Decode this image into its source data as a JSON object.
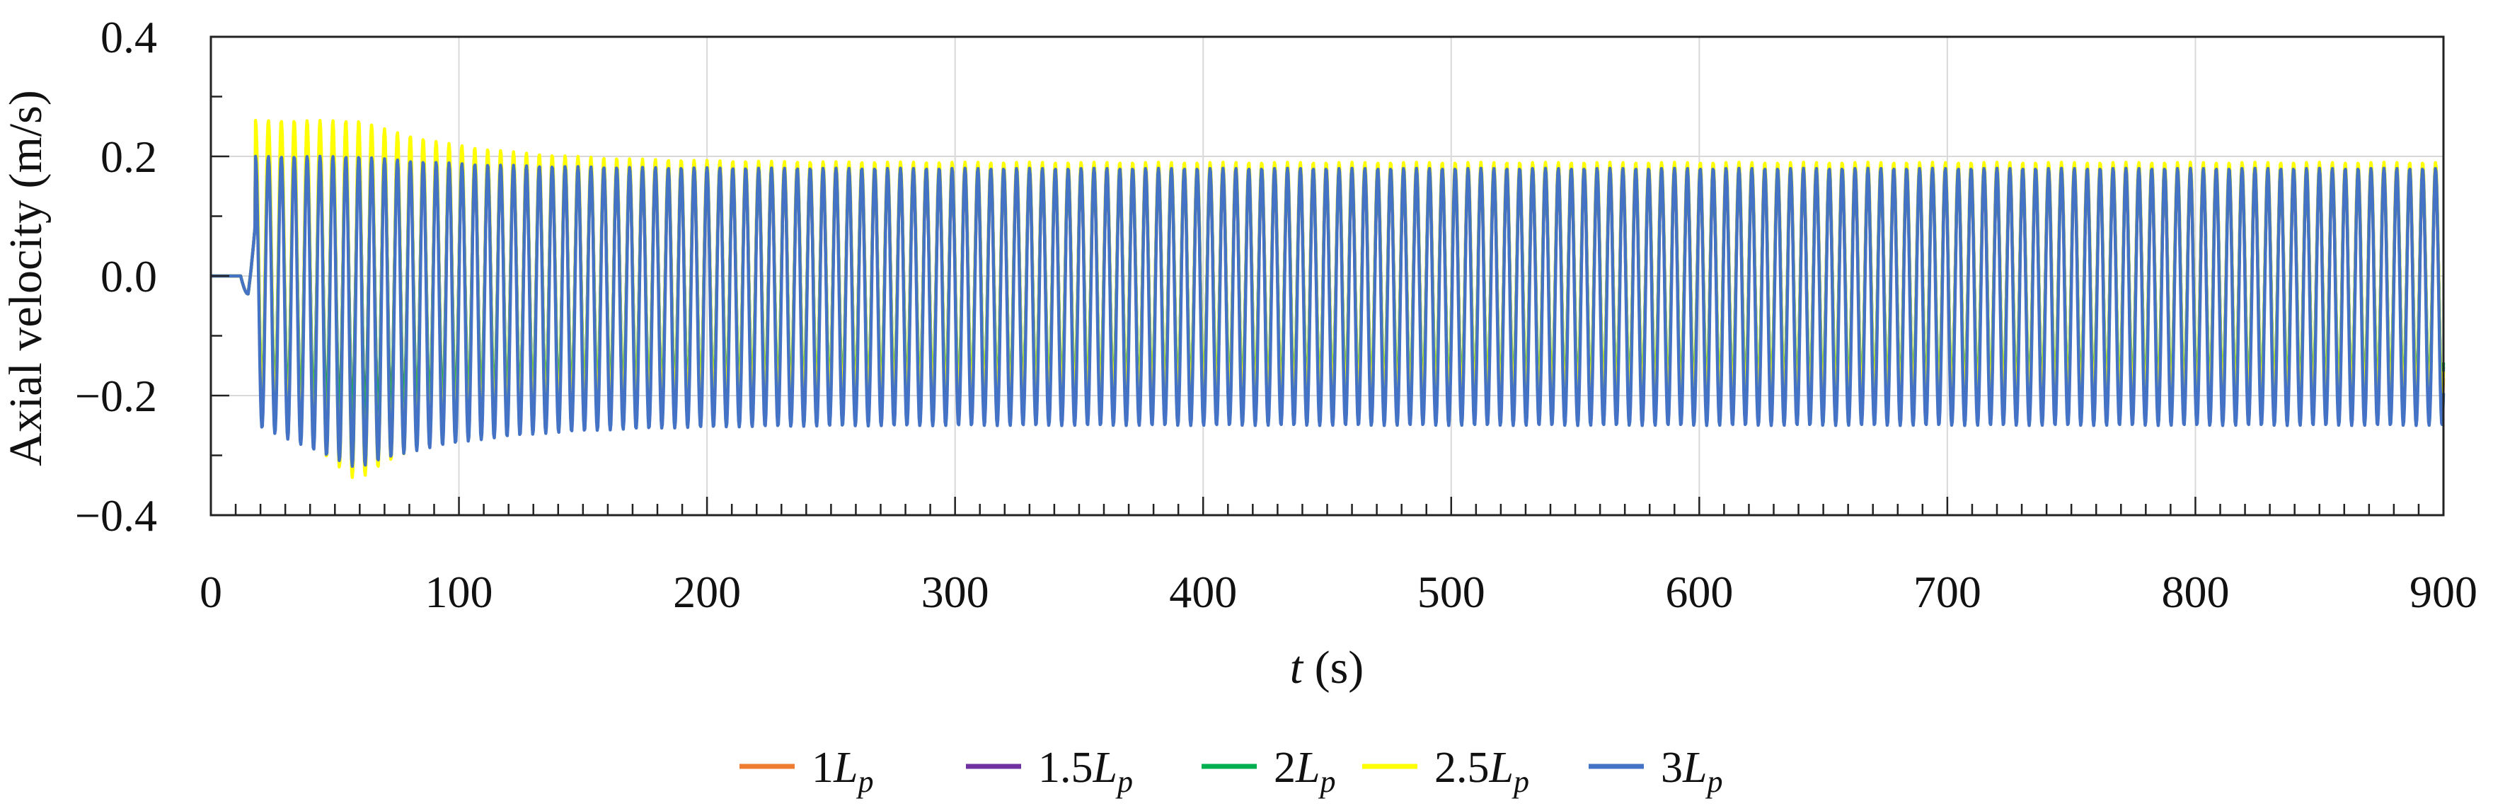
{
  "chart_data": {
    "type": "line",
    "ylabel": "Axial velocity (m/s)",
    "xlabel_var": "t",
    "xlabel_unit": " (s)",
    "xlim": [
      0,
      900
    ],
    "ylim": [
      -0.4,
      0.4
    ],
    "xticks": [
      0,
      100,
      200,
      300,
      400,
      500,
      600,
      700,
      800,
      900
    ],
    "xtick_labels": [
      "0",
      "100",
      "200",
      "300",
      "400",
      "500",
      "600",
      "700",
      "800",
      "900"
    ],
    "yticks": [
      -0.4,
      -0.2,
      0.0,
      0.2,
      0.4
    ],
    "ytick_labels": [
      "−0.4",
      "−0.2",
      "0.0",
      "0.2",
      "0.4"
    ],
    "grid": true,
    "legend_position": "bottom",
    "oscillation_period_s": 5.2,
    "series": [
      {
        "name": "1Lp",
        "name_main": "1L",
        "name_sub": "p",
        "color": "#ED7D31",
        "steady_max": 0.17,
        "steady_min": -0.22,
        "transient_max": 0.21,
        "transient_min": -0.25
      },
      {
        "name": "1.5Lp",
        "name_main": "1.5L",
        "name_sub": "p",
        "color": "#7030A0",
        "steady_max": 0.18,
        "steady_min": -0.2,
        "transient_max": 0.2,
        "transient_min": -0.24
      },
      {
        "name": "2Lp",
        "name_main": "2L",
        "name_sub": "p",
        "color": "#00B050",
        "steady_max": 0.17,
        "steady_min": -0.19,
        "transient_max": 0.22,
        "transient_min": -0.26
      },
      {
        "name": "2.5Lp",
        "name_main": "2.5L",
        "name_sub": "p",
        "color": "#FFFF00",
        "steady_max": 0.19,
        "steady_min": -0.21,
        "transient_max": 0.26,
        "transient_min": -0.34
      },
      {
        "name": "3Lp",
        "name_main": "3L",
        "name_sub": "p",
        "color": "#4472C4",
        "steady_max": 0.18,
        "steady_min": -0.25,
        "transient_max": 0.2,
        "transient_min": -0.32
      }
    ]
  }
}
